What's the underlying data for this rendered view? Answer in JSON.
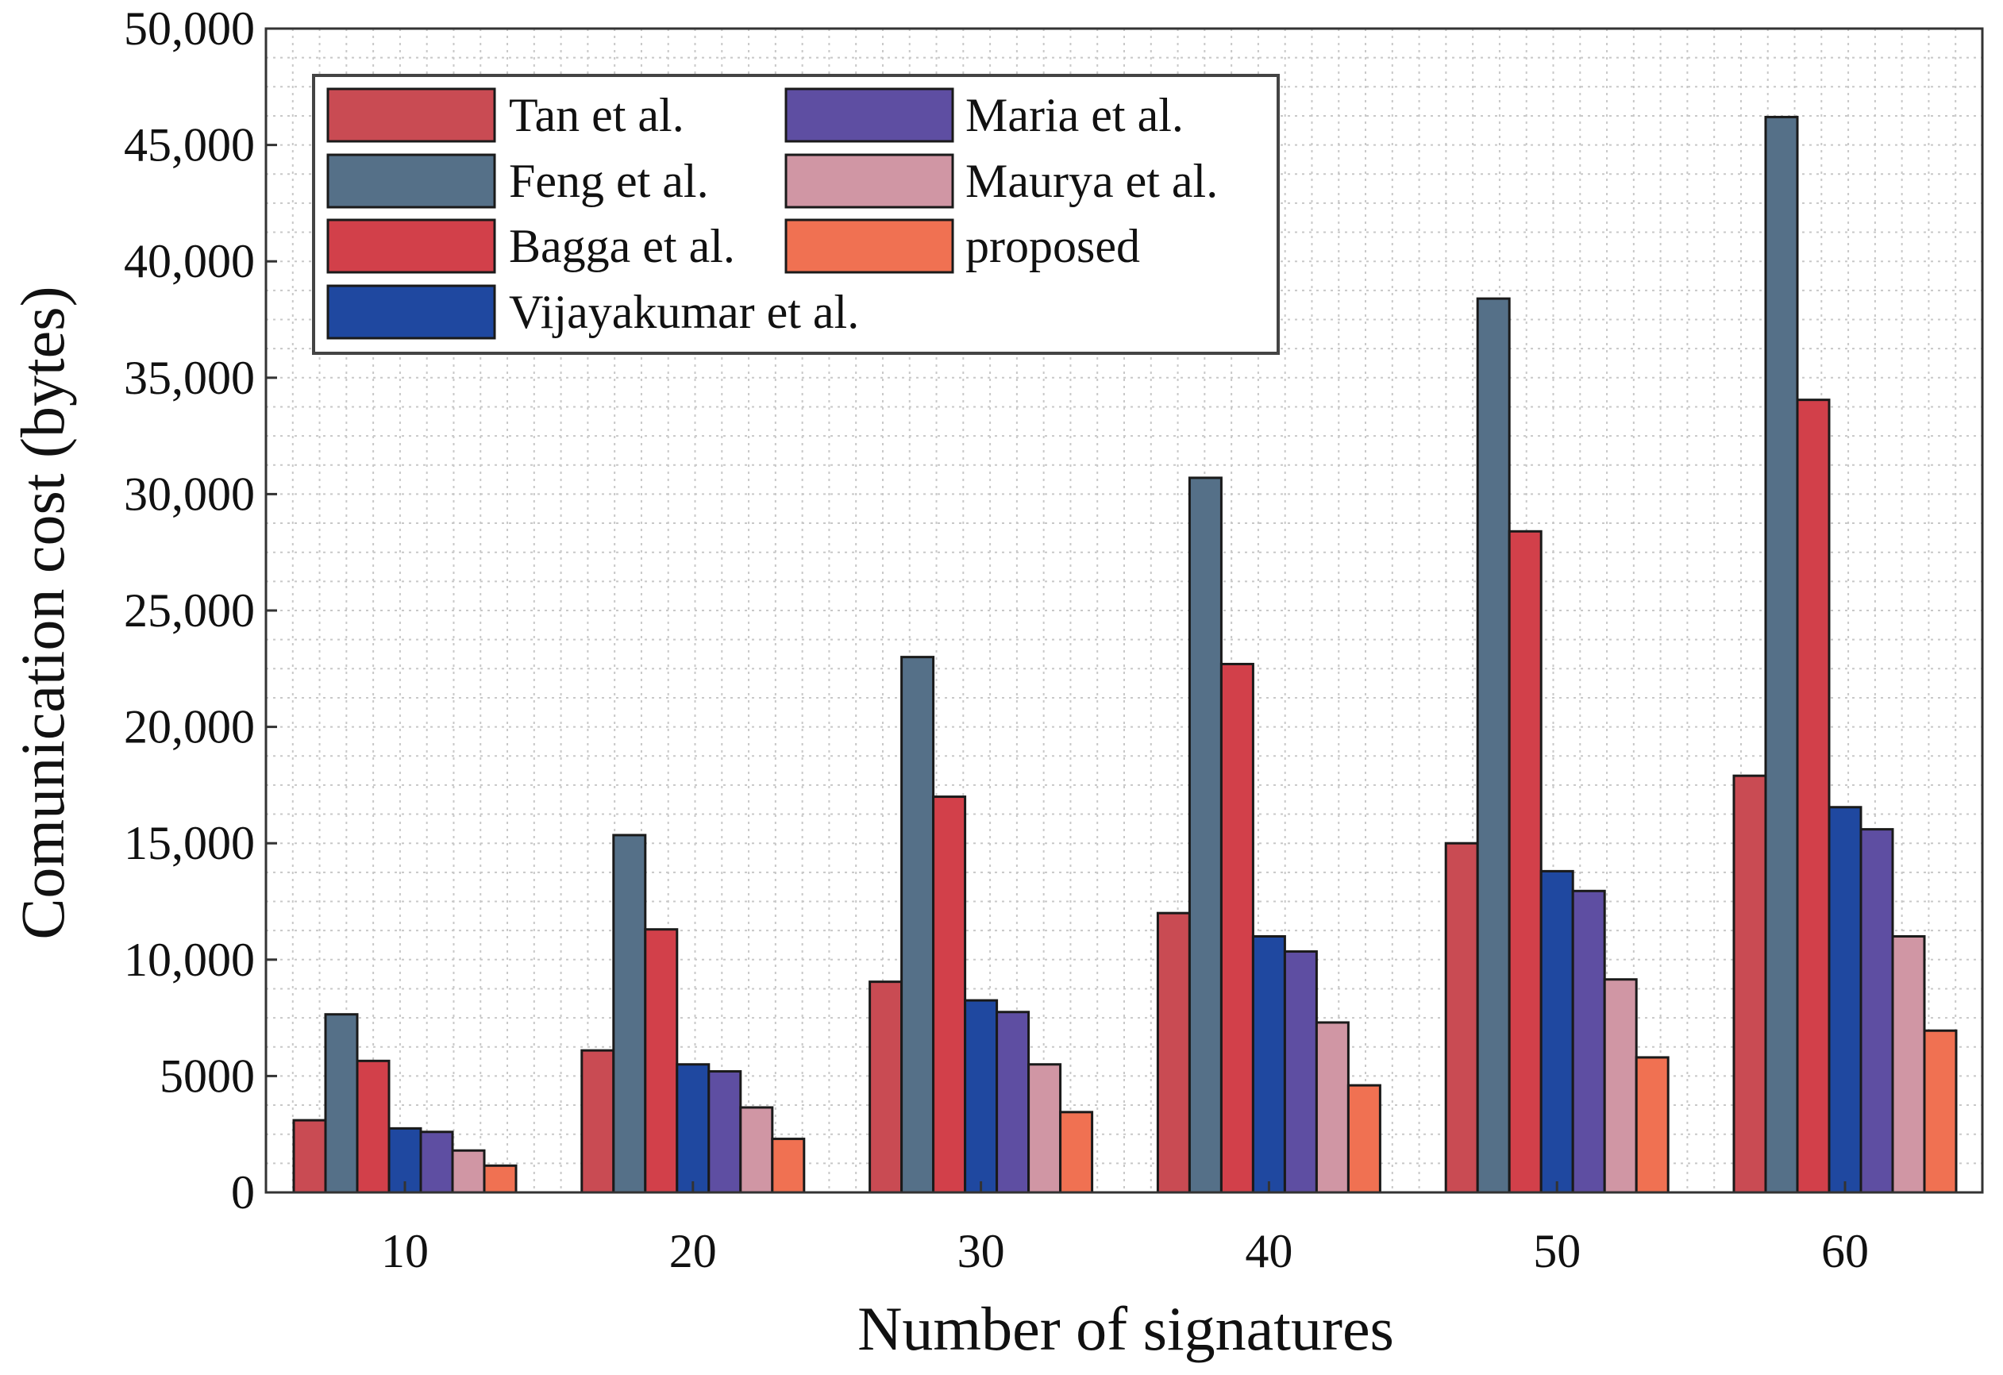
{
  "chart_data": {
    "type": "bar",
    "title": "",
    "xlabel": "Number of signatures",
    "ylabel": "Comunication cost (bytes)",
    "categories": [
      "10",
      "20",
      "30",
      "40",
      "50",
      "60"
    ],
    "ylim": [
      0,
      50000
    ],
    "yticks": [
      0,
      5000,
      10000,
      15000,
      20000,
      25000,
      30000,
      35000,
      40000,
      45000,
      50000
    ],
    "ytick_labels": [
      "0",
      "5000",
      "10,000",
      "15,000",
      "20,000",
      "25,000",
      "30,000",
      "35,000",
      "40,000",
      "45,000",
      "50,000"
    ],
    "grid": true,
    "legend_position": "top-left",
    "series": [
      {
        "name": "Tan et al.",
        "color": "#c94b53",
        "values": [
          3100,
          6100,
          9050,
          12000,
          15000,
          17900
        ]
      },
      {
        "name": "Feng et al.",
        "color": "#557088",
        "values": [
          7650,
          15350,
          23000,
          30700,
          38400,
          46200
        ]
      },
      {
        "name": "Bagga et al.",
        "color": "#d2404a",
        "values": [
          5650,
          11300,
          17000,
          22700,
          28400,
          34050
        ]
      },
      {
        "name": "Vijayakumar et al.",
        "color": "#1f48a0",
        "values": [
          2750,
          5500,
          8250,
          11000,
          13800,
          16550
        ]
      },
      {
        "name": "Maria et al.",
        "color": "#5e4ea2",
        "values": [
          2600,
          5200,
          7750,
          10350,
          12950,
          15600
        ]
      },
      {
        "name": "Maurya et al.",
        "color": "#d096a4",
        "values": [
          1800,
          3650,
          5500,
          7300,
          9150,
          11000
        ]
      },
      {
        "name": "proposed",
        "color": "#f07152",
        "values": [
          1150,
          2300,
          3450,
          4600,
          5800,
          6950
        ]
      }
    ]
  }
}
